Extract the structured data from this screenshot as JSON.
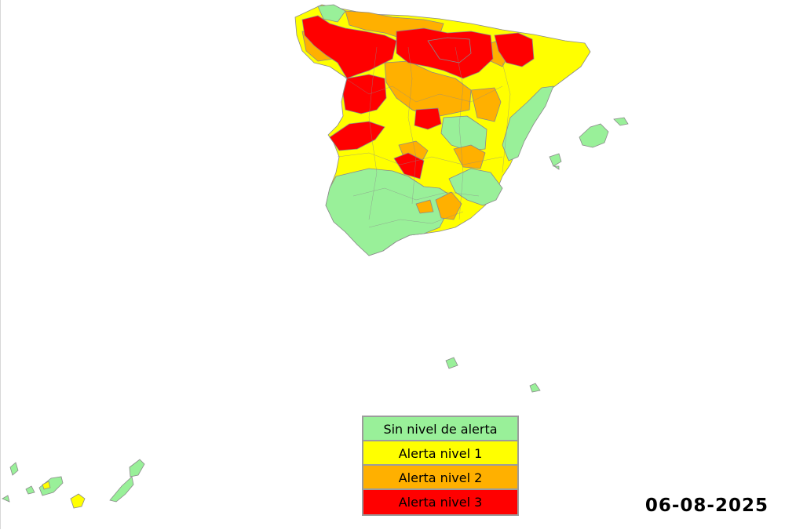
{
  "colors": {
    "none": "#99f099",
    "level1": "#ffff00",
    "level2": "#ffb000",
    "level3": "#ff0000",
    "border": "#8a8a8a"
  },
  "legend": [
    {
      "label": "Sin nivel de alerta",
      "color": "#99f099"
    },
    {
      "label": "Alerta nivel 1",
      "color": "#ffff00"
    },
    {
      "label": "Alerta nivel 2",
      "color": "#ffb000"
    },
    {
      "label": "Alerta nivel 3",
      "color": "#ff0000"
    }
  ],
  "date": "06-08-2025"
}
